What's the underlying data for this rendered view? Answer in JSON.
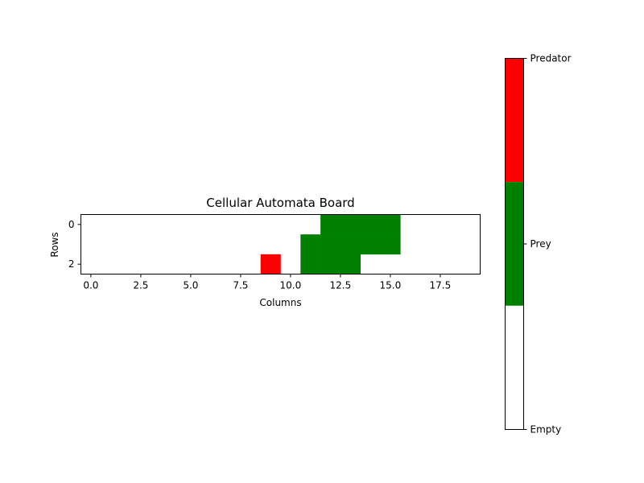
{
  "chart_data": {
    "type": "heatmap",
    "title": "Cellular Automata Board",
    "xlabel": "Columns",
    "ylabel": "Rows",
    "rows": 3,
    "cols": 20,
    "x_ticks": [
      0.0,
      2.5,
      5.0,
      7.5,
      10.0,
      12.5,
      15.0,
      17.5
    ],
    "x_tick_labels": [
      "0.0",
      "2.5",
      "5.0",
      "7.5",
      "10.0",
      "12.5",
      "15.0",
      "17.5"
    ],
    "y_ticks": [
      0,
      2
    ],
    "y_tick_labels": [
      "0",
      "2"
    ],
    "grid": [
      [
        0,
        0,
        0,
        0,
        0,
        0,
        0,
        0,
        0,
        0,
        0,
        0,
        1,
        1,
        1,
        1,
        0,
        0,
        0,
        0
      ],
      [
        0,
        0,
        0,
        0,
        0,
        0,
        0,
        0,
        0,
        0,
        0,
        1,
        1,
        1,
        1,
        1,
        0,
        0,
        0,
        0
      ],
      [
        0,
        0,
        0,
        0,
        0,
        0,
        0,
        0,
        0,
        2,
        0,
        1,
        1,
        1,
        0,
        0,
        0,
        0,
        0,
        0
      ]
    ],
    "states": [
      {
        "value": 0,
        "label": "Empty",
        "color": "#ffffff"
      },
      {
        "value": 1,
        "label": "Prey",
        "color": "#008000"
      },
      {
        "value": 2,
        "label": "Predator",
        "color": "#ff0000"
      }
    ],
    "colorbar": {
      "placement": "right",
      "tick_labels": [
        "Predator",
        "Prey",
        "Empty"
      ]
    }
  }
}
